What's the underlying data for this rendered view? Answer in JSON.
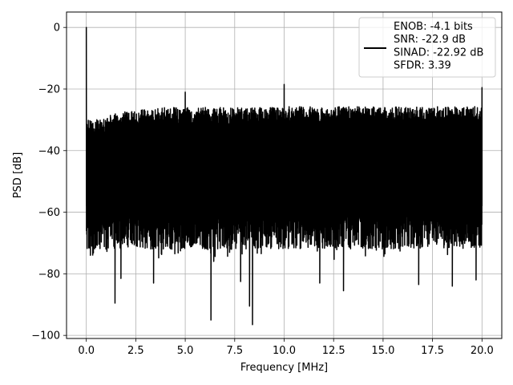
{
  "chart_data": {
    "type": "line",
    "xlabel": "Frequency [MHz]",
    "ylabel": "PSD [dB]",
    "xlim": [
      -1.0,
      21.0
    ],
    "ylim": [
      -101.0,
      5.0
    ],
    "xticks": [
      0.0,
      2.5,
      5.0,
      7.5,
      10.0,
      12.5,
      15.0,
      17.5,
      20.0
    ],
    "xtick_labels": [
      "0.0",
      "2.5",
      "5.0",
      "7.5",
      "10.0",
      "12.5",
      "15.0",
      "17.5",
      "20.0"
    ],
    "yticks": [
      0,
      -20,
      -40,
      -60,
      -80,
      -100
    ],
    "ytick_labels": [
      "0",
      "−20",
      "−40",
      "−60",
      "−80",
      "−100"
    ],
    "grid": true,
    "legend_position": "upper-right",
    "series_color": "#000000",
    "legend": [
      "ENOB: -4.1 bits",
      "SNR: -22.9 dB",
      "SINAD: -22.92 dB",
      "SFDR: 3.39"
    ],
    "series": [
      {
        "color": "#000000",
        "noise_band": {
          "x_range": [
            0.0,
            20.0
          ],
          "upper_envelope_db": [
            -29,
            -28,
            -25
          ],
          "typical_floor_db": [
            -66,
            -75
          ],
          "description_points": [
            {
              "x": 0.0,
              "y": 0.0
            },
            {
              "x": 0.02,
              "y": -58.0
            },
            {
              "x": 5.0,
              "y": -21.0
            },
            {
              "x": 10.0,
              "y": -18.5
            },
            {
              "x": 20.0,
              "y": -19.5
            },
            {
              "x": 20.0,
              "y": -58.0
            }
          ]
        },
        "peaks": [
          {
            "x": 0.0,
            "y": 0.0
          },
          {
            "x": 5.0,
            "y": -21.0
          },
          {
            "x": 10.0,
            "y": -18.5
          },
          {
            "x": 20.0,
            "y": -19.5
          }
        ],
        "deep_dips": [
          {
            "x": 1.45,
            "y": -89.5
          },
          {
            "x": 6.3,
            "y": -95.0
          },
          {
            "x": 8.25,
            "y": -90.5
          },
          {
            "x": 8.4,
            "y": -96.5
          },
          {
            "x": 13.0,
            "y": -85.5
          },
          {
            "x": 7.8,
            "y": -82.5
          },
          {
            "x": 18.5,
            "y": -84.0
          },
          {
            "x": 16.8,
            "y": -83.5
          },
          {
            "x": 19.7,
            "y": -82.0
          },
          {
            "x": 1.75,
            "y": -81.5
          },
          {
            "x": 3.4,
            "y": -83.0
          },
          {
            "x": 11.8,
            "y": -83.0
          }
        ]
      }
    ]
  }
}
